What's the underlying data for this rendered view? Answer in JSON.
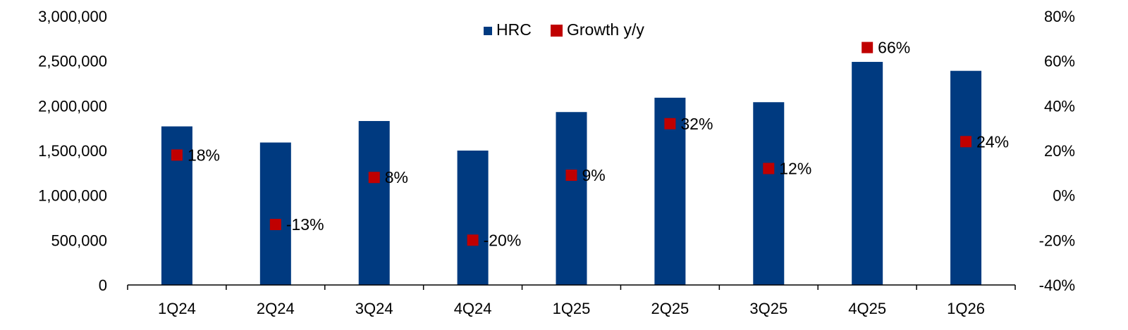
{
  "chart_data": {
    "type": "bar",
    "categories": [
      "1Q24",
      "2Q24",
      "3Q24",
      "4Q24",
      "1Q25",
      "2Q25",
      "3Q25",
      "4Q25",
      "1Q26"
    ],
    "series": [
      {
        "name": "HRC",
        "kind": "bar",
        "axis": "left",
        "color": "#003A80",
        "values": [
          1770000,
          1590000,
          1830000,
          1500000,
          1930000,
          2090000,
          2040000,
          2490000,
          2390000
        ]
      },
      {
        "name": "Growth y/y",
        "kind": "marker",
        "axis": "right",
        "color": "#C00000",
        "values": [
          18,
          -13,
          8,
          -20,
          9,
          32,
          12,
          66,
          24
        ],
        "labels": [
          "18%",
          "-13%",
          "8%",
          "-20%",
          "9%",
          "32%",
          "12%",
          "66%",
          "24%"
        ]
      }
    ],
    "y_left": {
      "ylim": [
        0,
        3000000
      ],
      "ticks": [
        0,
        500000,
        1000000,
        1500000,
        2000000,
        2500000,
        3000000
      ],
      "tick_labels": [
        "0",
        "500,000",
        "1,000,000",
        "1,500,000",
        "2,000,000",
        "2,500,000",
        "3,000,000"
      ]
    },
    "y_right": {
      "ylim": [
        -40,
        80
      ],
      "ticks": [
        -40,
        -20,
        0,
        20,
        40,
        60,
        80
      ],
      "tick_labels": [
        "-40%",
        "-20%",
        "0%",
        "20%",
        "40%",
        "60%",
        "80%"
      ]
    },
    "legend": {
      "position": "top-center",
      "entries": [
        "HRC",
        "Growth y/y"
      ]
    },
    "grid": false
  }
}
